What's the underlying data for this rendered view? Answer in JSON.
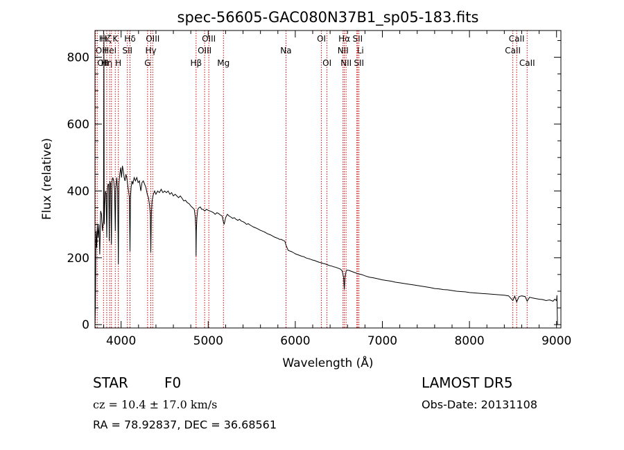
{
  "title": "spec-56605-GAC080N37B1_sp05-183.fits",
  "info": {
    "class_label": "STAR",
    "subclass": "F0",
    "survey": "LAMOST DR5",
    "cz": "cz = 10.4 ± 17.0 km/s",
    "obs_date": "Obs-Date: 20131108",
    "coords": "RA =  78.92837, DEC =  36.68561"
  },
  "colors": {
    "spectrum": "#000000",
    "lines": "#cc0000",
    "axes": "#000000",
    "background": "#ffffff"
  },
  "chart_data": {
    "type": "line",
    "title": "spec-56605-GAC080N37B1_sp05-183.fits",
    "xlabel": "Wavelength (Å)",
    "ylabel": "Flux (relative)",
    "xlim": [
      3700,
      9050
    ],
    "ylim": [
      -10,
      880
    ],
    "xticks": [
      4000,
      5000,
      6000,
      7000,
      8000,
      9000
    ],
    "yticks": [
      0,
      200,
      400,
      600,
      800
    ],
    "grid": false,
    "series": [
      {
        "points": [
          [
            3700,
            0
          ],
          [
            3705,
            60
          ],
          [
            3712,
            280
          ],
          [
            3720,
            230
          ],
          [
            3728,
            300
          ],
          [
            3736,
            260
          ],
          [
            3745,
            300
          ],
          [
            3755,
            210
          ],
          [
            3765,
            340
          ],
          [
            3775,
            330
          ],
          [
            3785,
            280
          ],
          [
            3792,
            300
          ],
          [
            3798,
            310
          ],
          [
            3803,
            870
          ],
          [
            3806,
            300
          ],
          [
            3812,
            360
          ],
          [
            3820,
            400
          ],
          [
            3828,
            390
          ],
          [
            3835,
            260
          ],
          [
            3842,
            400
          ],
          [
            3850,
            420
          ],
          [
            3858,
            420
          ],
          [
            3864,
            250
          ],
          [
            3870,
            430
          ],
          [
            3880,
            420
          ],
          [
            3889,
            240
          ],
          [
            3896,
            430
          ],
          [
            3905,
            440
          ],
          [
            3915,
            430
          ],
          [
            3925,
            400
          ],
          [
            3933,
            280
          ],
          [
            3940,
            410
          ],
          [
            3950,
            440
          ],
          [
            3960,
            400
          ],
          [
            3968,
            180
          ],
          [
            3975,
            420
          ],
          [
            3985,
            450
          ],
          [
            3995,
            470
          ],
          [
            4005,
            440
          ],
          [
            4015,
            475
          ],
          [
            4025,
            460
          ],
          [
            4035,
            440
          ],
          [
            4045,
            430
          ],
          [
            4055,
            450
          ],
          [
            4065,
            440
          ],
          [
            4075,
            420
          ],
          [
            4085,
            400
          ],
          [
            4095,
            380
          ],
          [
            4102,
            220
          ],
          [
            4108,
            380
          ],
          [
            4115,
            410
          ],
          [
            4125,
            430
          ],
          [
            4135,
            420
          ],
          [
            4150,
            440
          ],
          [
            4165,
            430
          ],
          [
            4180,
            440
          ],
          [
            4195,
            425
          ],
          [
            4210,
            430
          ],
          [
            4226,
            400
          ],
          [
            4240,
            425
          ],
          [
            4255,
            430
          ],
          [
            4270,
            420
          ],
          [
            4285,
            410
          ],
          [
            4300,
            390
          ],
          [
            4315,
            380
          ],
          [
            4325,
            360
          ],
          [
            4335,
            330
          ],
          [
            4341,
            215
          ],
          [
            4347,
            330
          ],
          [
            4355,
            370
          ],
          [
            4370,
            390
          ],
          [
            4385,
            400
          ],
          [
            4400,
            390
          ],
          [
            4420,
            400
          ],
          [
            4440,
            395
          ],
          [
            4460,
            405
          ],
          [
            4480,
            395
          ],
          [
            4500,
            400
          ],
          [
            4520,
            395
          ],
          [
            4540,
            400
          ],
          [
            4560,
            390
          ],
          [
            4580,
            395
          ],
          [
            4600,
            385
          ],
          [
            4620,
            390
          ],
          [
            4640,
            385
          ],
          [
            4660,
            380
          ],
          [
            4680,
            385
          ],
          [
            4700,
            378
          ],
          [
            4720,
            370
          ],
          [
            4740,
            372
          ],
          [
            4760,
            365
          ],
          [
            4780,
            362
          ],
          [
            4800,
            355
          ],
          [
            4820,
            350
          ],
          [
            4840,
            345
          ],
          [
            4852,
            320
          ],
          [
            4858,
            280
          ],
          [
            4861,
            205
          ],
          [
            4864,
            280
          ],
          [
            4870,
            320
          ],
          [
            4880,
            345
          ],
          [
            4895,
            350
          ],
          [
            4910,
            352
          ],
          [
            4925,
            345
          ],
          [
            4940,
            345
          ],
          [
            4960,
            340
          ],
          [
            4980,
            345
          ],
          [
            5000,
            342
          ],
          [
            5020,
            340
          ],
          [
            5040,
            338
          ],
          [
            5060,
            335
          ],
          [
            5080,
            330
          ],
          [
            5100,
            335
          ],
          [
            5120,
            332
          ],
          [
            5140,
            328
          ],
          [
            5160,
            325
          ],
          [
            5172,
            310
          ],
          [
            5183,
            300
          ],
          [
            5200,
            320
          ],
          [
            5220,
            330
          ],
          [
            5240,
            325
          ],
          [
            5260,
            322
          ],
          [
            5280,
            318
          ],
          [
            5300,
            320
          ],
          [
            5320,
            315
          ],
          [
            5340,
            312
          ],
          [
            5360,
            315
          ],
          [
            5380,
            310
          ],
          [
            5400,
            308
          ],
          [
            5420,
            305
          ],
          [
            5440,
            300
          ],
          [
            5460,
            302
          ],
          [
            5480,
            298
          ],
          [
            5500,
            295
          ],
          [
            5520,
            292
          ],
          [
            5540,
            290
          ],
          [
            5560,
            288
          ],
          [
            5580,
            285
          ],
          [
            5600,
            282
          ],
          [
            5620,
            280
          ],
          [
            5640,
            278
          ],
          [
            5660,
            275
          ],
          [
            5680,
            272
          ],
          [
            5700,
            270
          ],
          [
            5720,
            268
          ],
          [
            5740,
            265
          ],
          [
            5760,
            262
          ],
          [
            5780,
            260
          ],
          [
            5800,
            258
          ],
          [
            5820,
            255
          ],
          [
            5840,
            255
          ],
          [
            5860,
            252
          ],
          [
            5880,
            250
          ],
          [
            5893,
            238
          ],
          [
            5905,
            230
          ],
          [
            5920,
            222
          ],
          [
            5940,
            220
          ],
          [
            5960,
            218
          ],
          [
            5980,
            215
          ],
          [
            6000,
            212
          ],
          [
            6020,
            210
          ],
          [
            6040,
            208
          ],
          [
            6060,
            206
          ],
          [
            6080,
            204
          ],
          [
            6100,
            203
          ],
          [
            6120,
            200
          ],
          [
            6140,
            198
          ],
          [
            6160,
            197
          ],
          [
            6180,
            195
          ],
          [
            6200,
            193
          ],
          [
            6220,
            192
          ],
          [
            6240,
            190
          ],
          [
            6260,
            188
          ],
          [
            6280,
            186
          ],
          [
            6300,
            185
          ],
          [
            6320,
            183
          ],
          [
            6340,
            182
          ],
          [
            6360,
            180
          ],
          [
            6380,
            178
          ],
          [
            6400,
            176
          ],
          [
            6420,
            175
          ],
          [
            6440,
            173
          ],
          [
            6460,
            172
          ],
          [
            6480,
            170
          ],
          [
            6500,
            168
          ],
          [
            6520,
            166
          ],
          [
            6540,
            160
          ],
          [
            6555,
            140
          ],
          [
            6563,
            105
          ],
          [
            6570,
            140
          ],
          [
            6585,
            162
          ],
          [
            6600,
            163
          ],
          [
            6620,
            162
          ],
          [
            6640,
            160
          ],
          [
            6660,
            158
          ],
          [
            6680,
            156
          ],
          [
            6700,
            154
          ],
          [
            6720,
            152
          ],
          [
            6740,
            151
          ],
          [
            6760,
            150
          ],
          [
            6780,
            148
          ],
          [
            6800,
            146
          ],
          [
            6850,
            142
          ],
          [
            6900,
            140
          ],
          [
            6950,
            137
          ],
          [
            7000,
            134
          ],
          [
            7050,
            132
          ],
          [
            7100,
            130
          ],
          [
            7150,
            127
          ],
          [
            7200,
            125
          ],
          [
            7250,
            123
          ],
          [
            7300,
            121
          ],
          [
            7350,
            119
          ],
          [
            7400,
            117
          ],
          [
            7450,
            115
          ],
          [
            7500,
            113
          ],
          [
            7550,
            111
          ],
          [
            7600,
            108
          ],
          [
            7650,
            107
          ],
          [
            7700,
            105
          ],
          [
            7750,
            104
          ],
          [
            7800,
            102
          ],
          [
            7850,
            100
          ],
          [
            7900,
            99
          ],
          [
            7950,
            98
          ],
          [
            8000,
            96
          ],
          [
            8050,
            95
          ],
          [
            8100,
            94
          ],
          [
            8150,
            93
          ],
          [
            8200,
            92
          ],
          [
            8250,
            91
          ],
          [
            8300,
            90
          ],
          [
            8350,
            89
          ],
          [
            8400,
            88
          ],
          [
            8450,
            86
          ],
          [
            8498,
            72
          ],
          [
            8520,
            85
          ],
          [
            8542,
            68
          ],
          [
            8570,
            84
          ],
          [
            8600,
            86
          ],
          [
            8640,
            84
          ],
          [
            8662,
            70
          ],
          [
            8690,
            82
          ],
          [
            8720,
            80
          ],
          [
            8760,
            78
          ],
          [
            8800,
            76
          ],
          [
            8840,
            75
          ],
          [
            8880,
            72
          ],
          [
            8920,
            74
          ],
          [
            8960,
            70
          ],
          [
            8980,
            76
          ],
          [
            9000,
            72
          ],
          [
            9005,
            88
          ],
          [
            9010,
            0
          ]
        ]
      }
    ],
    "line_markers": [
      {
        "x": 3706,
        "label": "OII",
        "row": 1,
        "align": "start"
      },
      {
        "x": 3726,
        "label": "OII",
        "row": 2,
        "align": "start"
      },
      {
        "x": 3798,
        "label": "Hι",
        "row": 0,
        "align": "middle"
      },
      {
        "x": 3835,
        "label": "Hη",
        "row": 2,
        "align": "middle"
      },
      {
        "x": 3869,
        "label": "HeI",
        "row": 1,
        "align": "middle"
      },
      {
        "x": 3889,
        "label": "Hζ",
        "row": 0,
        "align": "end"
      },
      {
        "x": 3933,
        "label": "K",
        "row": 0,
        "align": "middle"
      },
      {
        "x": 3968,
        "label": "H",
        "row": 2,
        "align": "middle"
      },
      {
        "x": 4072,
        "label": "SII",
        "row": 1,
        "align": "middle"
      },
      {
        "x": 4102,
        "label": "Hδ",
        "row": 0,
        "align": "middle"
      },
      {
        "x": 4304,
        "label": "G",
        "row": 2,
        "align": "middle"
      },
      {
        "x": 4341,
        "label": "Hγ",
        "row": 1,
        "align": "middle"
      },
      {
        "x": 4363,
        "label": "OIII",
        "row": 0,
        "align": "middle"
      },
      {
        "x": 4861,
        "label": "Hβ",
        "row": 2,
        "align": "middle"
      },
      {
        "x": 4959,
        "label": "OIII",
        "row": 1,
        "align": "middle"
      },
      {
        "x": 5007,
        "label": "OIII",
        "row": 0,
        "align": "middle"
      },
      {
        "x": 5175,
        "label": "Mg",
        "row": 2,
        "align": "middle"
      },
      {
        "x": 5893,
        "label": "Na",
        "row": 1,
        "align": "middle"
      },
      {
        "x": 6300,
        "label": "OI",
        "row": 0,
        "align": "middle"
      },
      {
        "x": 6364,
        "label": "OI",
        "row": 2,
        "align": "middle"
      },
      {
        "x": 6548,
        "label": "NII",
        "row": 1,
        "align": "middle"
      },
      {
        "x": 6563,
        "label": "Hα",
        "row": 0,
        "align": "middle"
      },
      {
        "x": 6583,
        "label": "NII",
        "row": 2,
        "align": "middle"
      },
      {
        "x": 6707,
        "label": "Li",
        "row": 1,
        "align": "start"
      },
      {
        "x": 6716,
        "label": "SII",
        "row": 0,
        "align": "middle"
      },
      {
        "x": 6731,
        "label": "SII",
        "row": 2,
        "align": "middle"
      },
      {
        "x": 8498,
        "label": "CaII",
        "row": 1,
        "align": "middle"
      },
      {
        "x": 8542,
        "label": "CaII",
        "row": 0,
        "align": "middle"
      },
      {
        "x": 8662,
        "label": "CaII",
        "row": 2,
        "align": "middle"
      }
    ]
  }
}
